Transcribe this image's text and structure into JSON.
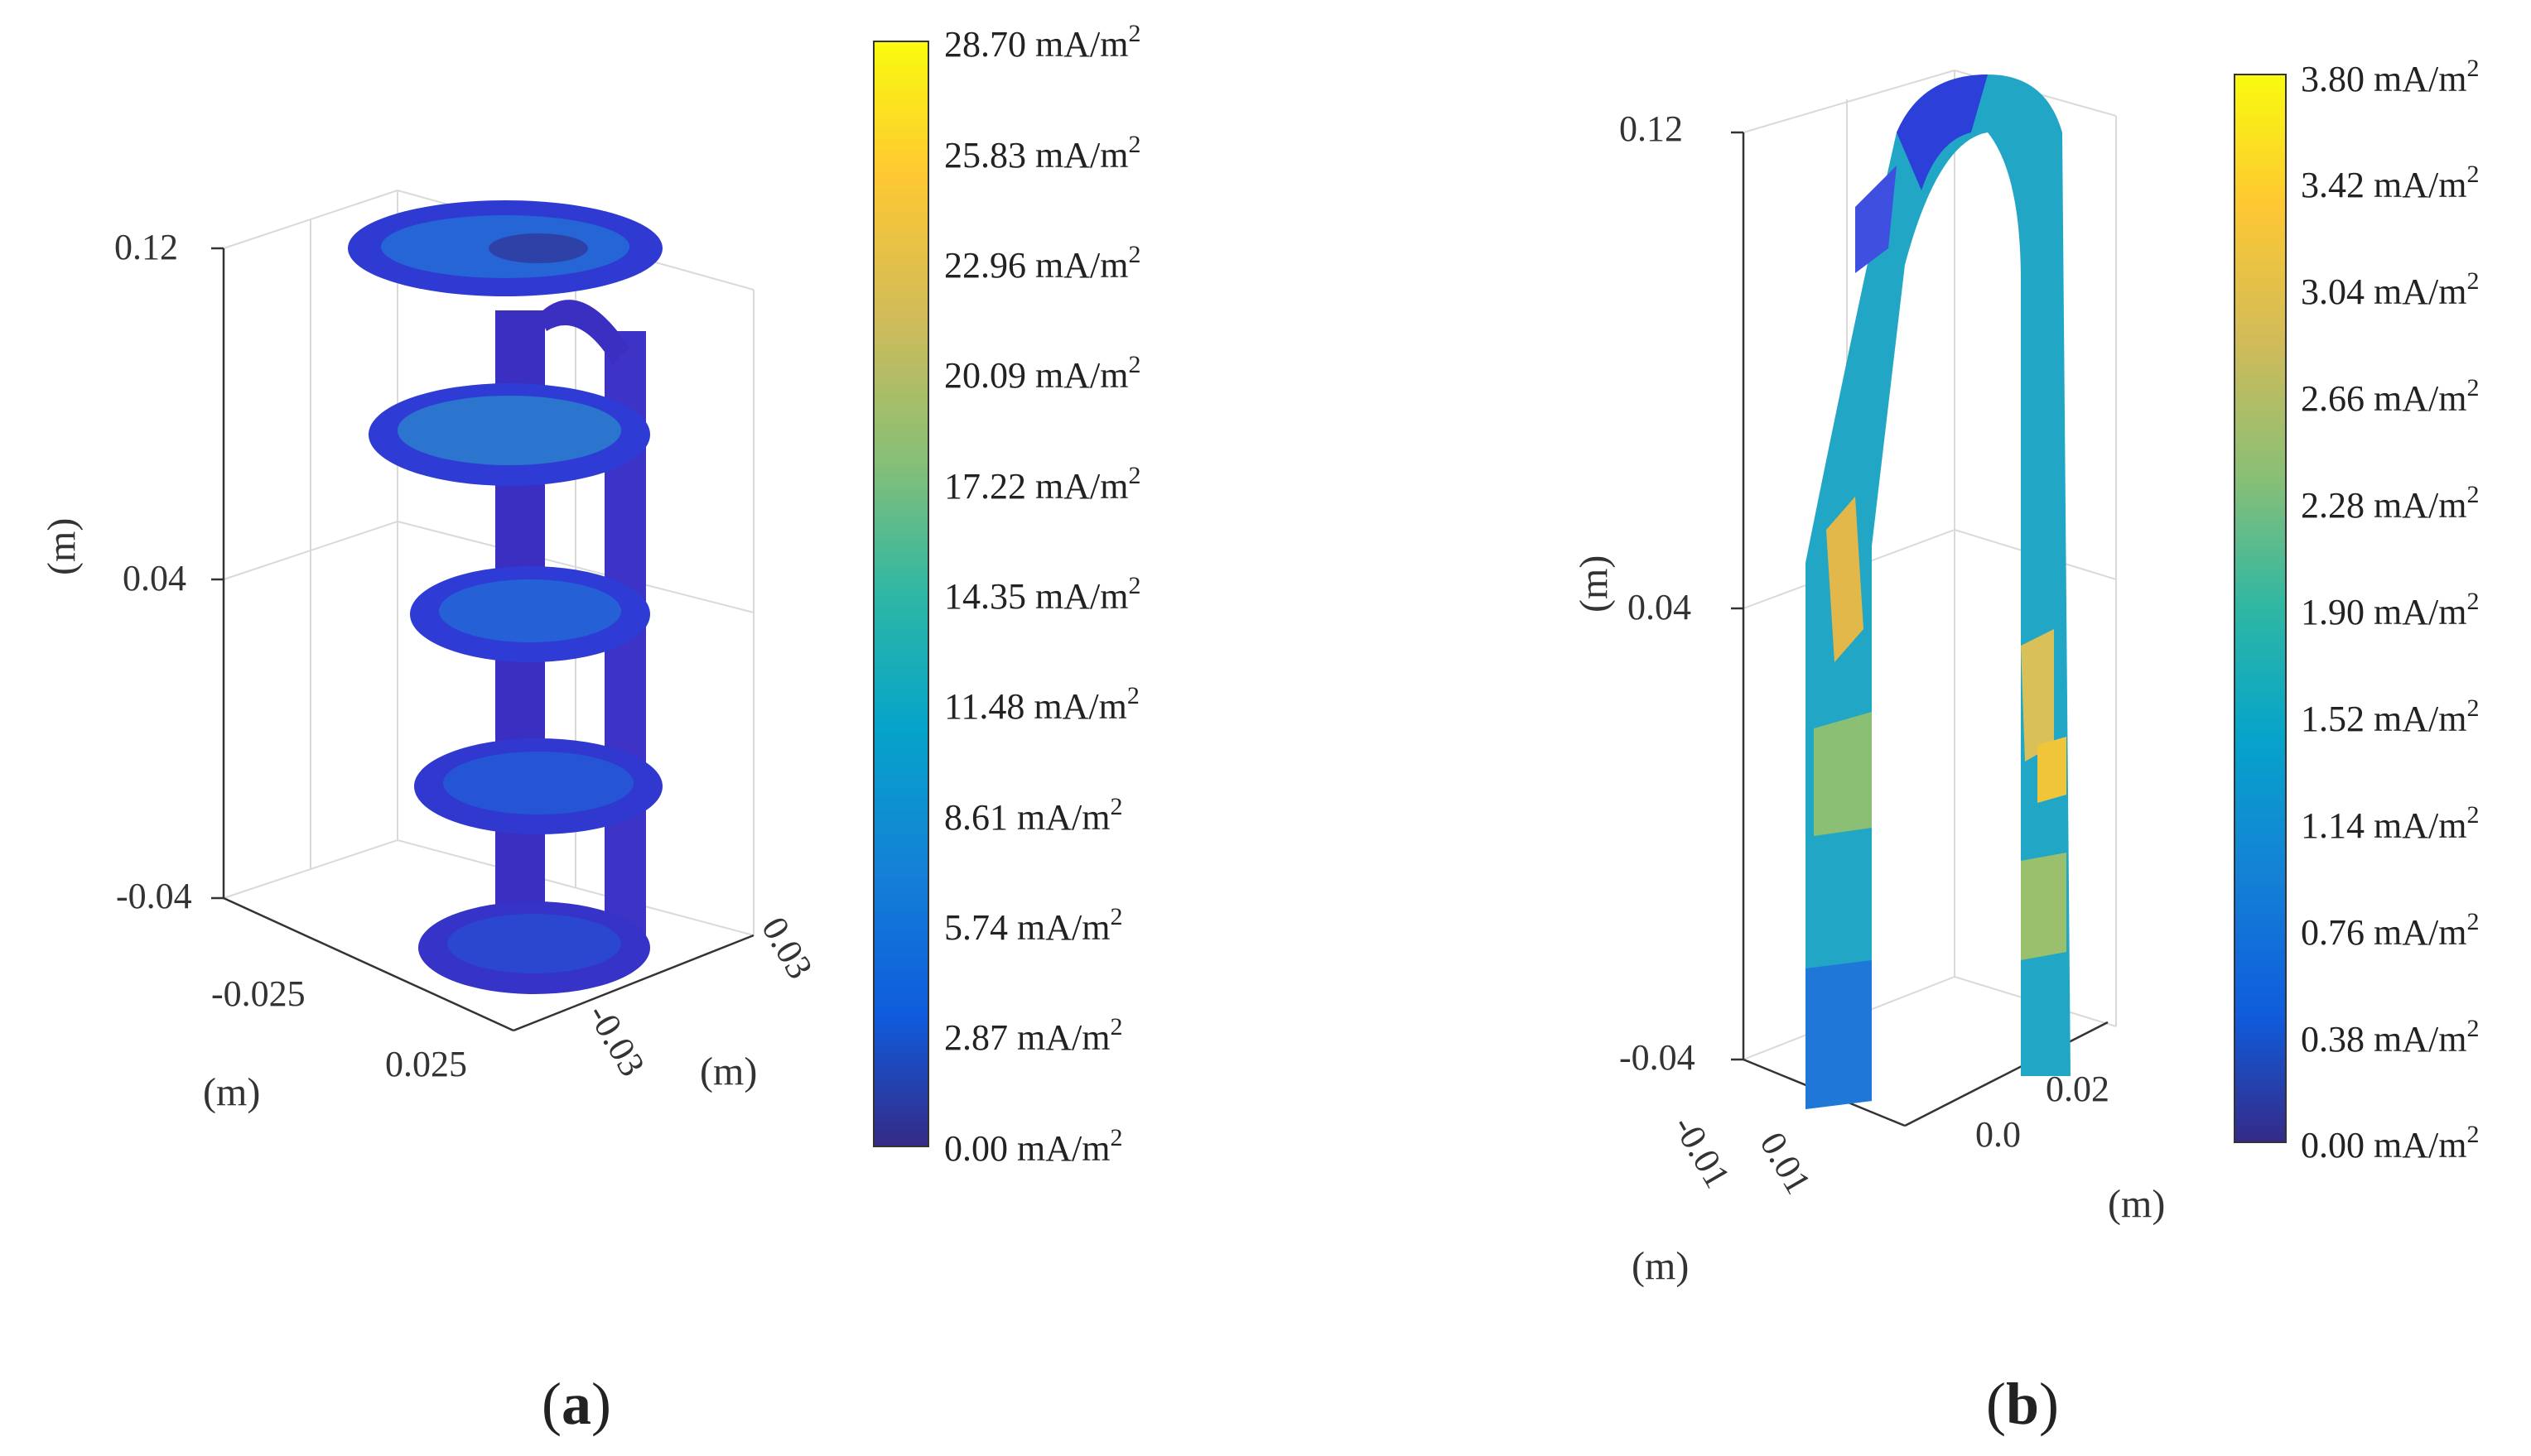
{
  "colors": {
    "parula": [
      "#352a87",
      "#0f5cdd",
      "#1481d6",
      "#06a4ca",
      "#2eb7a4",
      "#87bf77",
      "#d1bb59",
      "#fec832",
      "#f9fb0e"
    ],
    "axis": "#333333",
    "grid": "#dddddd"
  },
  "chart_data": [
    {
      "panel": "a",
      "type": "heatmap",
      "plot_kind": "3d-voxel",
      "panel_label": "a",
      "z_ticks": [
        "0.12",
        "0.04",
        "-0.04"
      ],
      "x_ticks": [
        "-0.025",
        "0.025"
      ],
      "y_ticks": [
        "0.03",
        "-0.03"
      ],
      "xlabel": "(m)",
      "ylabel": "(m)",
      "zlabel": "(m)",
      "colorbar": {
        "min": 0.0,
        "max": 28.7,
        "unit": "mA/m",
        "superscript": "2",
        "labels": [
          "28.70",
          "25.83",
          "22.96",
          "20.09",
          "17.22",
          "14.35",
          "11.48",
          "8.61",
          "5.74",
          "2.87",
          "0.00"
        ]
      },
      "grid": true,
      "structure": "four stacked elliptical plates joined by two vertical rods"
    },
    {
      "panel": "b",
      "type": "heatmap",
      "plot_kind": "3d-voxel",
      "panel_label": "b",
      "z_ticks": [
        "0.12",
        "0.04",
        "-0.04"
      ],
      "x_ticks": [
        "-0.01",
        "0.01"
      ],
      "y_ticks": [
        "0.02",
        "0.0"
      ],
      "xlabel": "(m)",
      "ylabel": "(m)",
      "zlabel": "(m)",
      "colorbar": {
        "min": 0.0,
        "max": 3.8,
        "unit": "mA/m",
        "superscript": "2",
        "labels": [
          "3.80",
          "3.42",
          "3.04",
          "2.66",
          "2.28",
          "1.90",
          "1.52",
          "1.14",
          "0.76",
          "0.38",
          "0.00"
        ]
      },
      "grid": true,
      "structure": "inverted U-shaped arch"
    }
  ]
}
